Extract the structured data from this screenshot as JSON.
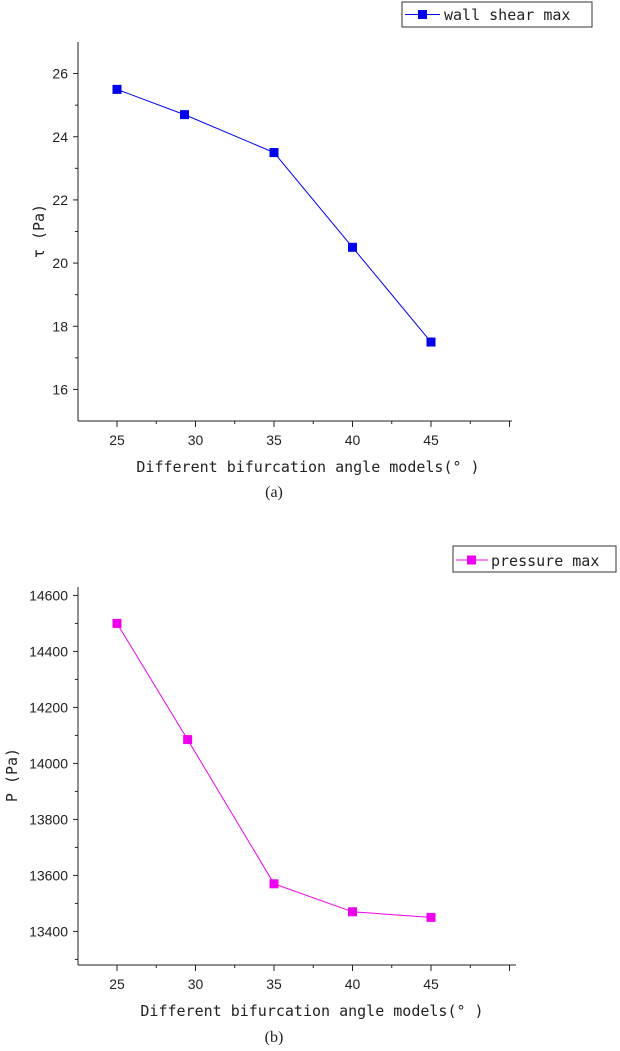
{
  "chart_data": [
    {
      "type": "line",
      "caption": "(a)",
      "xlabel": "Different bifurcation angle models(° )",
      "ylabel": "τ (Pa)",
      "x_ticks": [
        "25",
        "30",
        "35",
        "40",
        "45"
      ],
      "y_ticks": [
        "16",
        "18",
        "20",
        "22",
        "24",
        "26"
      ],
      "ylim": [
        15,
        27
      ],
      "legend_position": "top-right",
      "series": [
        {
          "name": "wall shear max",
          "color": "#0000ee",
          "marker": "square",
          "x": [
            25,
            29.3,
            35,
            40,
            45
          ],
          "values": [
            25.5,
            24.7,
            23.5,
            20.5,
            17.5
          ]
        }
      ]
    },
    {
      "type": "line",
      "caption": "(b)",
      "xlabel": "Different bifurcation angle models(° )",
      "ylabel": "P (Pa)",
      "x_ticks": [
        "25",
        "30",
        "35",
        "40",
        "45"
      ],
      "y_ticks": [
        "13400",
        "13600",
        "13800",
        "14000",
        "14200",
        "14400",
        "14600"
      ],
      "ylim": [
        13280,
        14630
      ],
      "legend_position": "top-right",
      "series": [
        {
          "name": "pressure max",
          "color": "#ee00ee",
          "marker": "square",
          "x": [
            25,
            29.5,
            35,
            40,
            45
          ],
          "values": [
            14500,
            14085,
            13570,
            13470,
            13450
          ]
        }
      ]
    }
  ]
}
